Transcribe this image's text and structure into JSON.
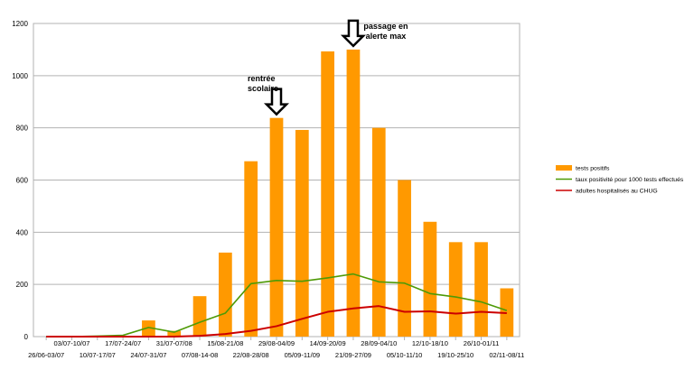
{
  "chart_data": {
    "type": "bar",
    "categories": [
      "26/06-03/07",
      "03/07-10/07",
      "10/07-17/07",
      "17/07-24/07",
      "24/07-31/07",
      "31/07-07/08",
      "07/08-14-08",
      "15/08-21/08",
      "22/08-28/08",
      "29/08-04/09",
      "05/09-11/09",
      "14/09-20/09",
      "21/09-27/09",
      "28/09-04/10",
      "05/10-11/10",
      "12/10-18/10",
      "19/10-25/10",
      "26/10-01/11",
      "02/11-08/11"
    ],
    "ylim": [
      0,
      1200
    ],
    "yticks": [
      0,
      200,
      400,
      600,
      800,
      1000,
      1200
    ],
    "grid": true,
    "legend_position": "right",
    "series": [
      {
        "name": "tests positifs",
        "type": "bar",
        "color": "#ff9900",
        "values": [
          0,
          0,
          0,
          0,
          62,
          22,
          155,
          322,
          672,
          838,
          792,
          1093,
          1100,
          800,
          600,
          440,
          362,
          362,
          185
        ]
      },
      {
        "name": "taux positivité pour 1000 tests effectués",
        "type": "line",
        "color": "#4e9a06",
        "values": [
          0,
          0,
          2,
          5,
          35,
          17,
          55,
          90,
          203,
          215,
          212,
          225,
          240,
          210,
          205,
          165,
          152,
          133,
          100
        ]
      },
      {
        "name": "adultes hospitalisés au CHUG",
        "type": "line",
        "color": "#cc0000",
        "values": [
          0,
          0,
          0,
          0,
          0,
          0,
          3,
          10,
          22,
          40,
          68,
          95,
          108,
          117,
          95,
          97,
          88,
          95,
          90
        ]
      }
    ],
    "annotations": [
      {
        "text_lines": [
          "rentrée",
          "scolaire"
        ],
        "category_index": 9
      },
      {
        "text_lines": [
          "passage en",
          "alerte max"
        ],
        "category_index": 12
      }
    ]
  }
}
